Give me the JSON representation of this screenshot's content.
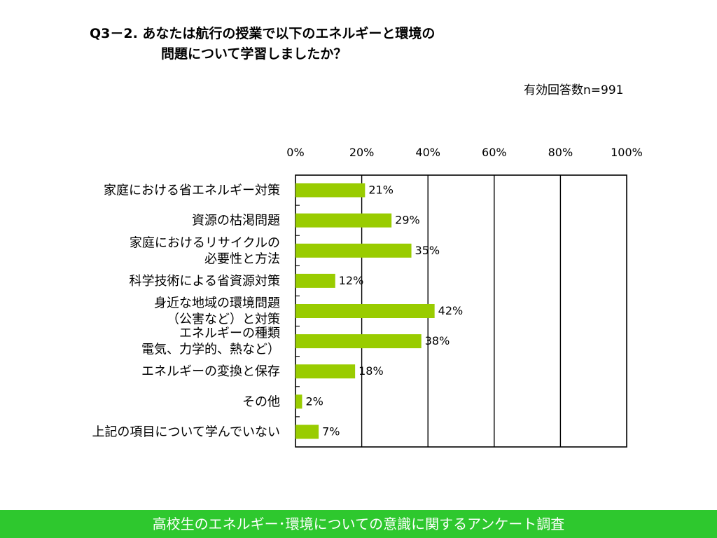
{
  "question": {
    "line1": "Q3－2. あなたは航行の授業で以下のエネルギーと環境の",
    "line2": "問題について学習しましたか？"
  },
  "sample_size": "有効回答数n=991",
  "chart_data": {
    "type": "bar",
    "orientation": "horizontal",
    "categories": [
      [
        "家庭における省エネルギー対策"
      ],
      [
        "資源の枯渇問題"
      ],
      [
        "家庭におけるリサイクルの",
        "必要性と方法"
      ],
      [
        "科学技術による省資源対策"
      ],
      [
        "身近な地域の環境問題",
        "（公害など）と対策"
      ],
      [
        "エネルギーの種類",
        "電気、力学的、熱など）"
      ],
      [
        "エネルギーの変換と保存"
      ],
      [
        "その他"
      ],
      [
        "上記の項目について学んでいない"
      ]
    ],
    "values": [
      21,
      29,
      35,
      12,
      42,
      38,
      18,
      2,
      7
    ],
    "value_labels": [
      "21%",
      "29%",
      "35%",
      "12%",
      "42%",
      "38%",
      "18%",
      "2%",
      "7%"
    ],
    "xlim": [
      0,
      100
    ],
    "ticks": [
      0,
      20,
      40,
      60,
      80,
      100
    ],
    "tick_labels": [
      "0%",
      "20%",
      "40%",
      "60%",
      "80%",
      "100%"
    ],
    "bar_color": "#99cc00",
    "grid": true
  },
  "footer": "高校生のエネルギー･環境についての意識に関するアンケート調査"
}
